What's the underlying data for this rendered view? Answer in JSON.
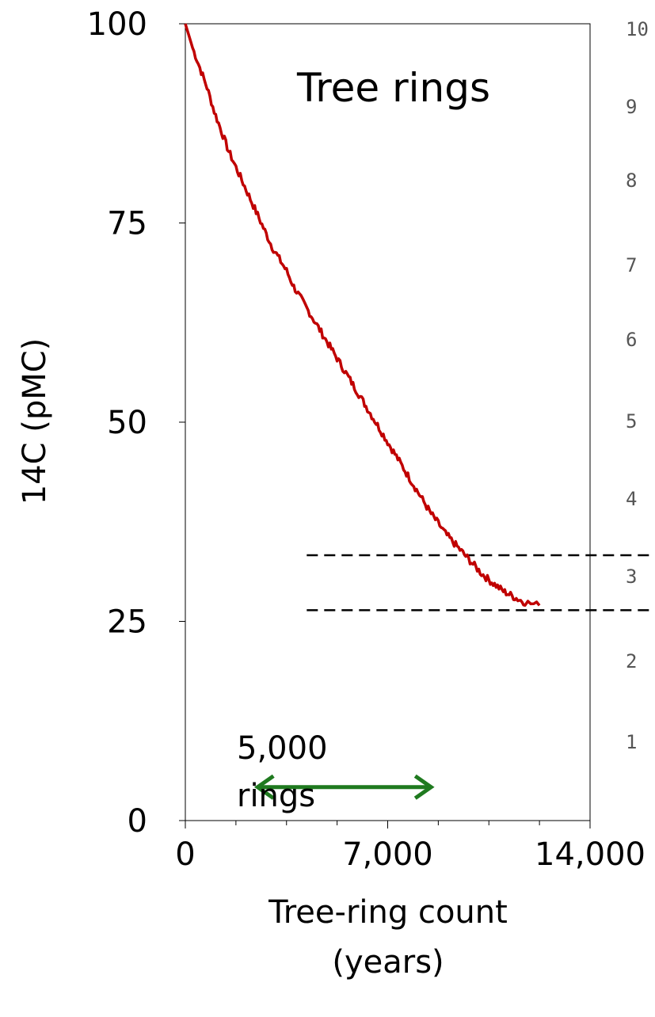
{
  "chart_data": {
    "type": "line",
    "title": "Tree rings",
    "xlabel_lines": [
      "Tree-ring count",
      "(years)"
    ],
    "ylabel": "14C (pMC)",
    "xlim": [
      0,
      14000
    ],
    "ylim": [
      0,
      100
    ],
    "x_ticks": [
      {
        "value": 0,
        "label": "0"
      },
      {
        "value": 7000,
        "label": "7,000"
      },
      {
        "value": 14000,
        "label": "14,000"
      }
    ],
    "y_ticks": [
      {
        "value": 0,
        "label": "0"
      },
      {
        "value": 25,
        "label": "25"
      },
      {
        "value": 50,
        "label": "50"
      },
      {
        "value": 75,
        "label": "75"
      },
      {
        "value": 100,
        "label": "100"
      }
    ],
    "grid": false,
    "series": [
      {
        "color": "#c00000",
        "points": [
          [
            0,
            100
          ],
          [
            250,
            97
          ],
          [
            500,
            94.5
          ],
          [
            750,
            92
          ],
          [
            1000,
            89
          ],
          [
            1250,
            86.5
          ],
          [
            1500,
            84
          ],
          [
            1750,
            82
          ],
          [
            2000,
            80
          ],
          [
            2250,
            78
          ],
          [
            2500,
            76
          ],
          [
            2750,
            74
          ],
          [
            3000,
            72
          ],
          [
            3250,
            70.5
          ],
          [
            3500,
            69
          ],
          [
            3750,
            67
          ],
          [
            4000,
            65.5
          ],
          [
            4250,
            64
          ],
          [
            4500,
            62.5
          ],
          [
            4750,
            61
          ],
          [
            5000,
            59.5
          ],
          [
            5250,
            58
          ],
          [
            5500,
            56.5
          ],
          [
            5750,
            55
          ],
          [
            6000,
            53.5
          ],
          [
            6250,
            52
          ],
          [
            6500,
            50.5
          ],
          [
            6750,
            49
          ],
          [
            7000,
            47.5
          ],
          [
            7250,
            46
          ],
          [
            7500,
            44.5
          ],
          [
            7750,
            43
          ],
          [
            8000,
            41.5
          ],
          [
            8250,
            40
          ],
          [
            8500,
            38.5
          ],
          [
            8750,
            37.3
          ],
          [
            9000,
            36
          ],
          [
            9250,
            35
          ],
          [
            9500,
            34
          ],
          [
            9750,
            33
          ],
          [
            10000,
            32
          ],
          [
            10250,
            31
          ],
          [
            10500,
            30.2
          ],
          [
            10750,
            29.5
          ],
          [
            11000,
            28.8
          ],
          [
            11250,
            28.3
          ],
          [
            11500,
            27.8
          ],
          [
            11750,
            27.4
          ],
          [
            12250,
            27
          ]
        ]
      }
    ],
    "reference_lines": [
      {
        "y": 33.3,
        "x_from": 4200,
        "style": "dashed"
      },
      {
        "y": 26.4,
        "x_from": 4200,
        "style": "dashed"
      }
    ],
    "annotation": {
      "text_lines": [
        "5,000",
        "rings"
      ],
      "arrow_x_from": 2500,
      "arrow_x_to": 8500,
      "arrow_y": 4.2,
      "arrow_color": "#1f7a1f"
    },
    "adjacent_panel_partial_ticks": [
      "10",
      "9",
      "8",
      "7",
      "6",
      "5",
      "4",
      "3",
      "2",
      "1"
    ]
  }
}
